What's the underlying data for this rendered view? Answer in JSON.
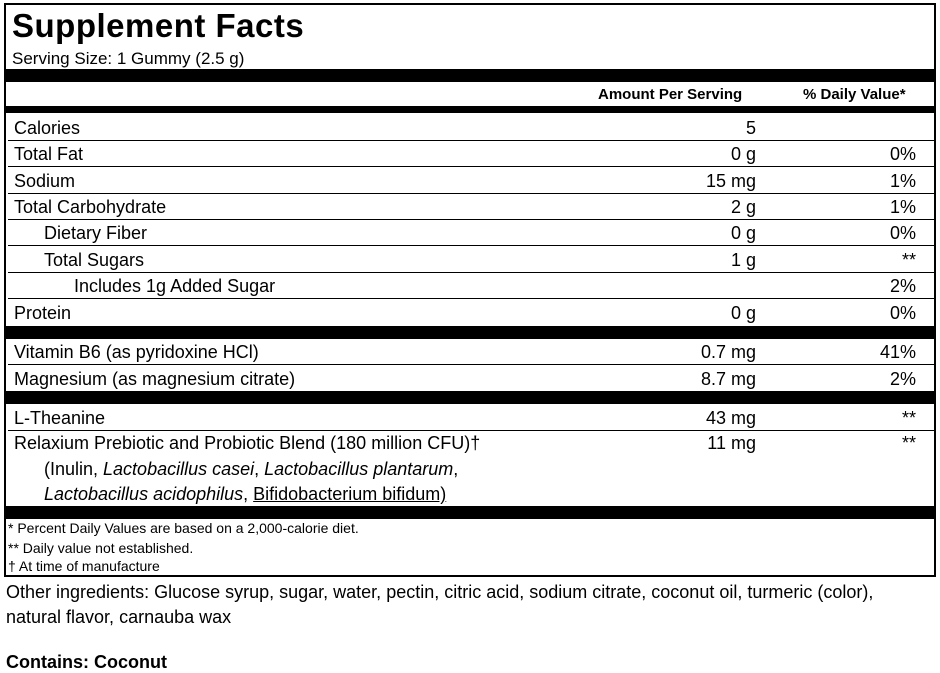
{
  "title": "Supplement Facts",
  "serving_size": "Serving Size: 1 Gummy (2.5 g)",
  "headers": {
    "amount": "Amount Per Serving",
    "dv": "% Daily Value*"
  },
  "rows": [
    {
      "name": "Calories",
      "amount": "5",
      "dv": ""
    },
    {
      "name": "Total Fat",
      "amount": "0 g",
      "dv": "0%"
    },
    {
      "name": "Sodium",
      "amount": "15 mg",
      "dv": "1%"
    },
    {
      "name": "Total Carbohydrate",
      "amount": "2 g",
      "dv": "1%"
    },
    {
      "name": "Dietary Fiber",
      "amount": "0 g",
      "dv": "0%"
    },
    {
      "name": "Total Sugars",
      "amount": "1 g",
      "dv": "**"
    },
    {
      "name": "Includes 1g Added Sugar",
      "amount": "",
      "dv": "2%"
    },
    {
      "name": "Protein",
      "amount": "0 g",
      "dv": "0%"
    },
    {
      "name": "Vitamin B6 (as pyridoxine HCl)",
      "amount": "0.7 mg",
      "dv": "41%"
    },
    {
      "name": "Magnesium (as magnesium citrate)",
      "amount": "8.7 mg",
      "dv": "2%"
    },
    {
      "name": "L-Theanine",
      "amount": "43 mg",
      "dv": "**"
    }
  ],
  "blend": {
    "name": "Relaxium Prebiotic and Probiotic Blend (180 million CFU)†",
    "amount": "11 mg",
    "dv": "**",
    "inulin": "(Inulin, ",
    "casei": "Lactobacillus casei",
    "sep1": ", ",
    "plantarum": "Lactobacillus plantarum",
    "sep2": ",",
    "acidophilus": "Lactobacillus acidophilus",
    "sep3": ", ",
    "bifidum": "Bifidobacterium bifidum)"
  },
  "footnotes": [
    "* Percent Daily Values are based on a 2,000-calorie diet.",
    "** Daily value not established.",
    "† At time of manufacture"
  ],
  "other_ingredients": "Other ingredients: Glucose syrup, sugar, water, pectin, citric acid, sodium citrate, coconut oil, turmeric (color), natural flavor, carnauba wax",
  "contains": "Contains: Coconut"
}
